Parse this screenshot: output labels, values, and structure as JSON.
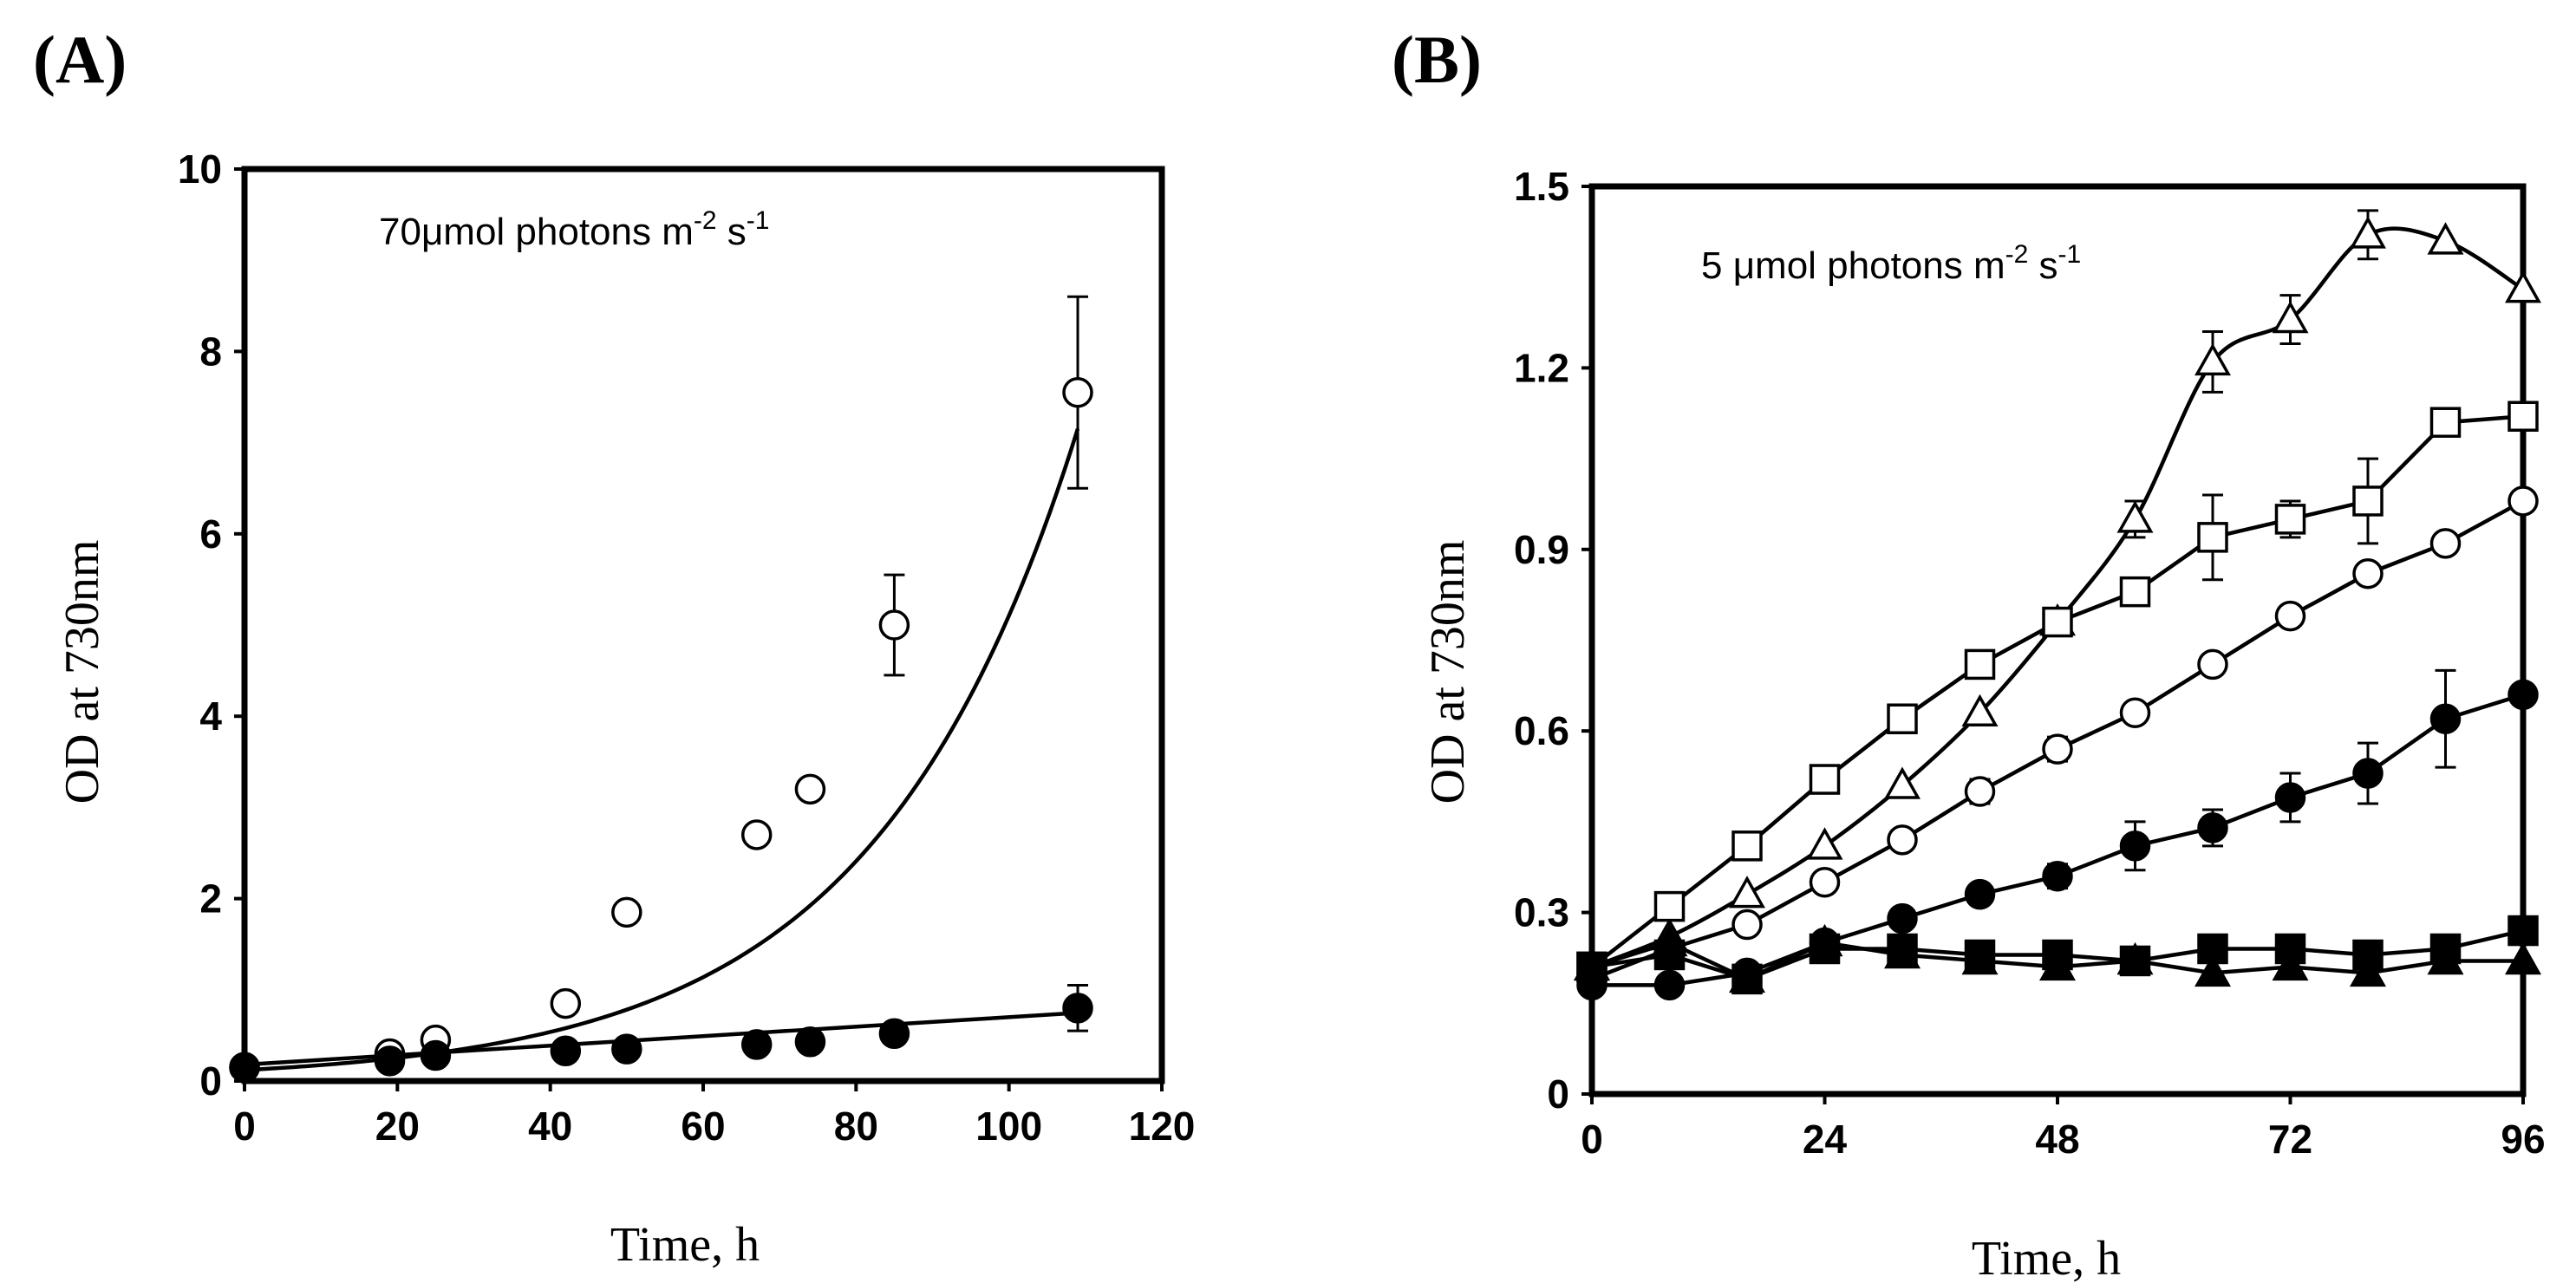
{
  "chart_data": [
    {
      "panel_label": "(A)",
      "type": "scatter",
      "title": "",
      "annotation": {
        "text": "70μmol photons m",
        "exp1": "-2",
        "mid": " s",
        "exp2": "-1"
      },
      "xlabel": "Time, h",
      "ylabel": "OD at 730nm",
      "xlim": [
        0,
        120
      ],
      "ylim": [
        0,
        10
      ],
      "xticks": [
        "0",
        "20",
        "40",
        "60",
        "80",
        "100",
        "120"
      ],
      "yticks": [
        "0",
        "2",
        "4",
        "6",
        "8",
        "10"
      ],
      "grid": false,
      "legend": "none",
      "series": [
        {
          "name": "open circles",
          "marker": "circle-open",
          "x": [
            0,
            19,
            25,
            42,
            50,
            67,
            74,
            85,
            109
          ],
          "y": [
            0.15,
            0.3,
            0.45,
            0.85,
            1.85,
            2.7,
            3.2,
            5.0,
            7.55
          ],
          "err": [
            0,
            0,
            0,
            0,
            0,
            0,
            0,
            0.55,
            1.05
          ],
          "fit": {
            "type": "exponential",
            "y0": 0.12,
            "k": 0.0375
          }
        },
        {
          "name": "filled circles",
          "marker": "circle-filled",
          "x": [
            0,
            19,
            25,
            42,
            50,
            67,
            74,
            85,
            109
          ],
          "y": [
            0.15,
            0.22,
            0.28,
            0.33,
            0.35,
            0.4,
            0.43,
            0.52,
            0.8
          ],
          "err": [
            0,
            0,
            0,
            0,
            0,
            0,
            0,
            0,
            0.25
          ],
          "fit": {
            "type": "linear",
            "y0": 0.18,
            "k": 0.0052
          }
        }
      ]
    },
    {
      "panel_label": "(B)",
      "type": "line",
      "title": "",
      "annotation": {
        "text": "5 μmol photons m",
        "exp1": "-2",
        "mid": " s",
        "exp2": "-1"
      },
      "xlabel": "Time, h",
      "ylabel": "OD at 730nm",
      "xlim": [
        0,
        96
      ],
      "ylim": [
        0,
        1.5
      ],
      "xticks": [
        "0",
        "24",
        "48",
        "72",
        "96"
      ],
      "yticks": [
        "0",
        "0.3",
        "0.6",
        "0.9",
        "1.2",
        "1.5"
      ],
      "grid": false,
      "legend": "none",
      "series": [
        {
          "name": "open triangles",
          "marker": "triangle-open",
          "smooth": true,
          "x": [
            0,
            8,
            16,
            24,
            32,
            40,
            48,
            56,
            64,
            72,
            80,
            88,
            96
          ],
          "y": [
            0.21,
            0.26,
            0.33,
            0.41,
            0.51,
            0.63,
            0.78,
            0.95,
            1.21,
            1.28,
            1.42,
            1.41,
            1.33
          ],
          "err": [
            0,
            0,
            0,
            0,
            0,
            0,
            0,
            0.03,
            0.05,
            0.04,
            0.04,
            0,
            0
          ]
        },
        {
          "name": "open squares",
          "marker": "square-open",
          "smooth": false,
          "x": [
            0,
            8,
            16,
            24,
            32,
            40,
            48,
            56,
            64,
            72,
            80,
            88,
            96
          ],
          "y": [
            0.21,
            0.31,
            0.41,
            0.52,
            0.62,
            0.71,
            0.78,
            0.83,
            0.92,
            0.95,
            0.98,
            1.11,
            1.12
          ],
          "err": [
            0,
            0,
            0,
            0,
            0,
            0,
            0,
            0,
            0.07,
            0.03,
            0.07,
            0,
            0
          ]
        },
        {
          "name": "open circles",
          "marker": "circle-open",
          "smooth": false,
          "x": [
            0,
            8,
            16,
            24,
            32,
            40,
            48,
            56,
            64,
            72,
            80,
            88,
            96
          ],
          "y": [
            0.19,
            0.24,
            0.28,
            0.35,
            0.42,
            0.5,
            0.57,
            0.63,
            0.71,
            0.79,
            0.86,
            0.91,
            0.98
          ],
          "err": [
            0,
            0,
            0,
            0,
            0,
            0.02,
            0.02,
            0,
            0,
            0,
            0,
            0,
            0
          ]
        },
        {
          "name": "filled circles",
          "marker": "circle-filled",
          "smooth": false,
          "x": [
            0,
            8,
            16,
            24,
            32,
            40,
            48,
            56,
            64,
            72,
            80,
            88,
            96
          ],
          "y": [
            0.18,
            0.18,
            0.2,
            0.25,
            0.29,
            0.33,
            0.36,
            0.41,
            0.44,
            0.49,
            0.53,
            0.62,
            0.66
          ],
          "err": [
            0,
            0,
            0,
            0,
            0,
            0,
            0.02,
            0.04,
            0.03,
            0.04,
            0.05,
            0.08,
            0
          ]
        },
        {
          "name": "filled squares",
          "marker": "square-filled",
          "smooth": false,
          "x": [
            0,
            8,
            16,
            24,
            32,
            40,
            48,
            56,
            64,
            72,
            80,
            88,
            96
          ],
          "y": [
            0.21,
            0.23,
            0.19,
            0.24,
            0.24,
            0.23,
            0.23,
            0.22,
            0.24,
            0.24,
            0.23,
            0.24,
            0.27
          ],
          "err": [
            0,
            0,
            0,
            0,
            0,
            0,
            0,
            0,
            0,
            0,
            0,
            0,
            0
          ]
        },
        {
          "name": "filled triangles",
          "marker": "triangle-filled",
          "smooth": false,
          "x": [
            0,
            8,
            16,
            24,
            32,
            40,
            48,
            56,
            64,
            72,
            80,
            88,
            96
          ],
          "y": [
            0.21,
            0.25,
            0.19,
            0.25,
            0.23,
            0.22,
            0.21,
            0.22,
            0.2,
            0.21,
            0.2,
            0.22,
            0.22
          ],
          "err": [
            0,
            0,
            0,
            0,
            0,
            0,
            0,
            0,
            0,
            0,
            0,
            0,
            0
          ]
        }
      ]
    }
  ]
}
